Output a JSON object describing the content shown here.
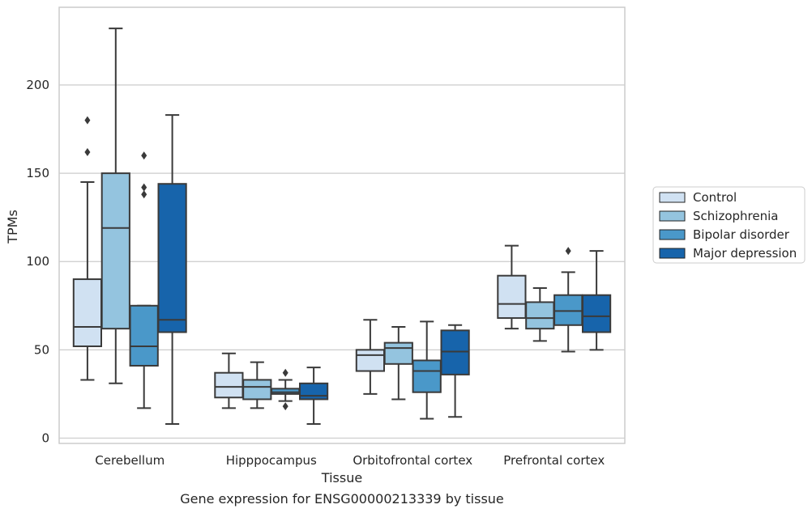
{
  "caption": "Gene expression for ENSG00000213339 by tissue",
  "chart_data": {
    "type": "box",
    "title": "",
    "xlabel": "Tissue",
    "ylabel": "TPMs",
    "ylim": [
      -3,
      244
    ],
    "yticks": [
      0,
      50,
      100,
      150,
      200
    ],
    "grid": "horizontal",
    "legend_position": "right",
    "categories": [
      "Cerebellum",
      "Hipppocampus",
      "Orbitofrontal cortex",
      "Prefrontal cortex"
    ],
    "series": [
      {
        "name": "Control",
        "color": "#d0e1f2",
        "boxes": [
          {
            "whisker_low": 33,
            "q1": 52,
            "median": 63,
            "q3": 90,
            "whisker_high": 145,
            "outliers": [
              162,
              180
            ]
          },
          {
            "whisker_low": 17,
            "q1": 23,
            "median": 29,
            "q3": 37,
            "whisker_high": 48,
            "outliers": []
          },
          {
            "whisker_low": 25,
            "q1": 38,
            "median": 47,
            "q3": 50,
            "whisker_high": 67,
            "outliers": []
          },
          {
            "whisker_low": 62,
            "q1": 68,
            "median": 76,
            "q3": 92,
            "whisker_high": 109,
            "outliers": []
          }
        ]
      },
      {
        "name": "Schizophrenia",
        "color": "#94c4df",
        "boxes": [
          {
            "whisker_low": 31,
            "q1": 62,
            "median": 119,
            "q3": 150,
            "whisker_high": 232,
            "outliers": []
          },
          {
            "whisker_low": 17,
            "q1": 22,
            "median": 29,
            "q3": 33,
            "whisker_high": 43,
            "outliers": []
          },
          {
            "whisker_low": 22,
            "q1": 42,
            "median": 51,
            "q3": 54,
            "whisker_high": 63,
            "outliers": []
          },
          {
            "whisker_low": 55,
            "q1": 62,
            "median": 68,
            "q3": 77,
            "whisker_high": 85,
            "outliers": []
          }
        ]
      },
      {
        "name": "Bipolar disorder",
        "color": "#4a98c9",
        "boxes": [
          {
            "whisker_low": 17,
            "q1": 41,
            "median": 52,
            "q3": 75,
            "whisker_high": 75,
            "outliers": [
              138,
              142,
              160
            ]
          },
          {
            "whisker_low": 21,
            "q1": 25,
            "median": 26,
            "q3": 28,
            "whisker_high": 33,
            "outliers": [
              18,
              37
            ]
          },
          {
            "whisker_low": 11,
            "q1": 26,
            "median": 38,
            "q3": 44,
            "whisker_high": 66,
            "outliers": []
          },
          {
            "whisker_low": 49,
            "q1": 64,
            "median": 72,
            "q3": 81,
            "whisker_high": 94,
            "outliers": [
              106
            ]
          }
        ]
      },
      {
        "name": "Major depression",
        "color": "#1764ab",
        "boxes": [
          {
            "whisker_low": 8,
            "q1": 60,
            "median": 67,
            "q3": 144,
            "whisker_high": 183,
            "outliers": []
          },
          {
            "whisker_low": 8,
            "q1": 22,
            "median": 24,
            "q3": 31,
            "whisker_high": 40,
            "outliers": []
          },
          {
            "whisker_low": 12,
            "q1": 36,
            "median": 49,
            "q3": 61,
            "whisker_high": 64,
            "outliers": []
          },
          {
            "whisker_low": 50,
            "q1": 60,
            "median": 69,
            "q3": 81,
            "whisker_high": 106,
            "outliers": []
          }
        ]
      }
    ]
  }
}
